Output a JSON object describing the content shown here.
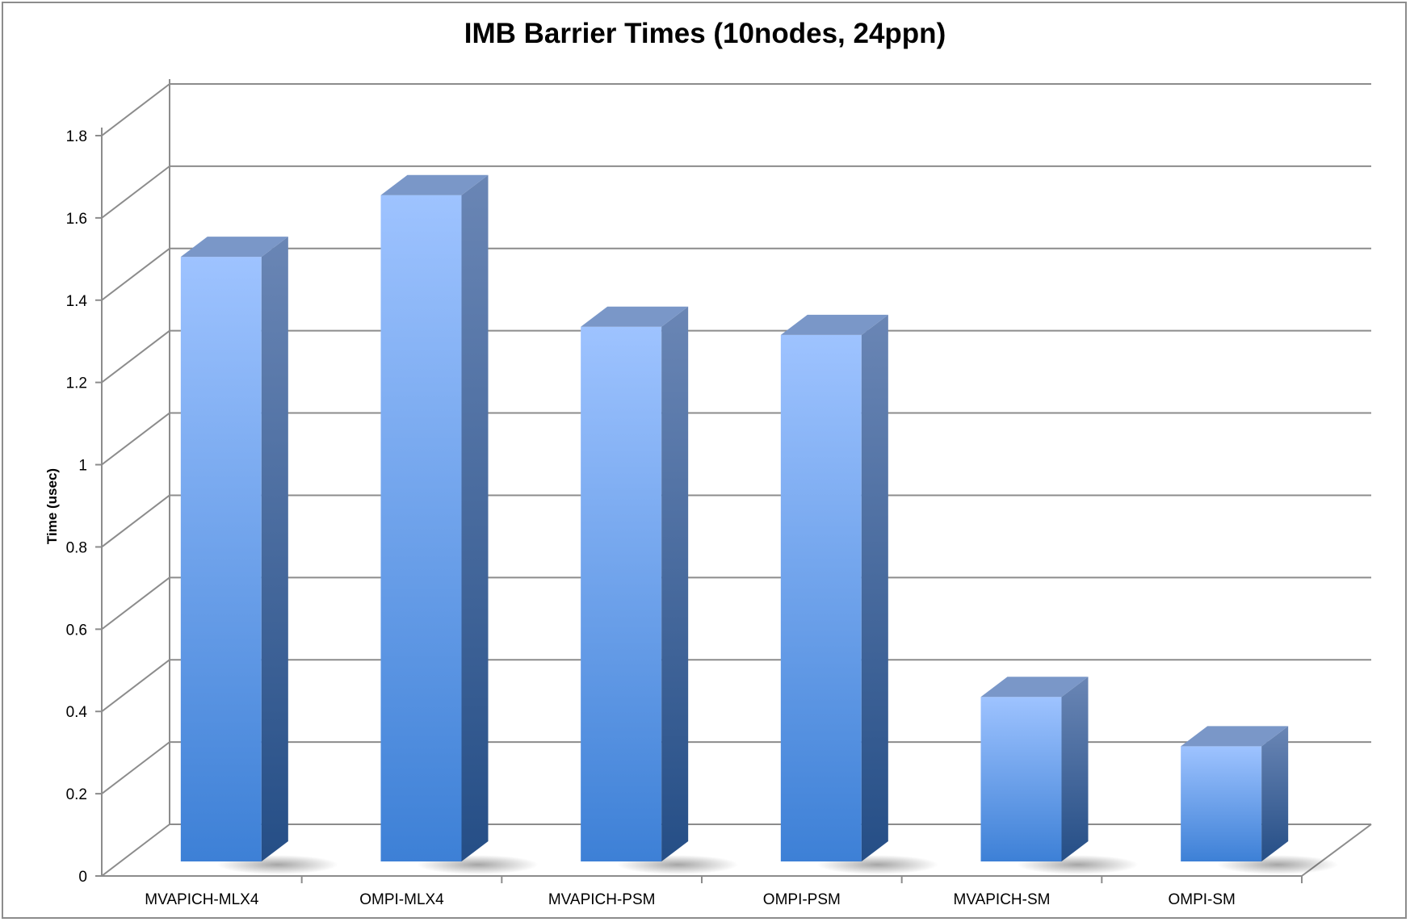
{
  "chart_data": {
    "type": "bar",
    "title": "IMB Barrier Times (10nodes, 24ppn)",
    "xlabel": "",
    "ylabel": "Time (usec)",
    "ylim": [
      0,
      1.8
    ],
    "yticks": [
      "0",
      "0.2",
      "0.4",
      "0.6",
      "0.8",
      "1",
      "1.2",
      "1.4",
      "1.6",
      "1.8"
    ],
    "categories": [
      "MVAPICH-MLX4",
      "OMPI-MLX4",
      "MVAPICH-PSM",
      "OMPI-PSM",
      "MVAPICH-SM",
      "OMPI-SM"
    ],
    "values": [
      1.47,
      1.62,
      1.3,
      1.28,
      0.4,
      0.28
    ],
    "grid": true,
    "legend": "none",
    "colors": {
      "bar_front_top": "#9ec3ff",
      "bar_front_bottom": "#3d80d6",
      "bar_side_top": "#6a86b5",
      "bar_side_bottom": "#254e86",
      "bar_top": "#7a97c8",
      "gridline": "#8c8c8c"
    }
  }
}
